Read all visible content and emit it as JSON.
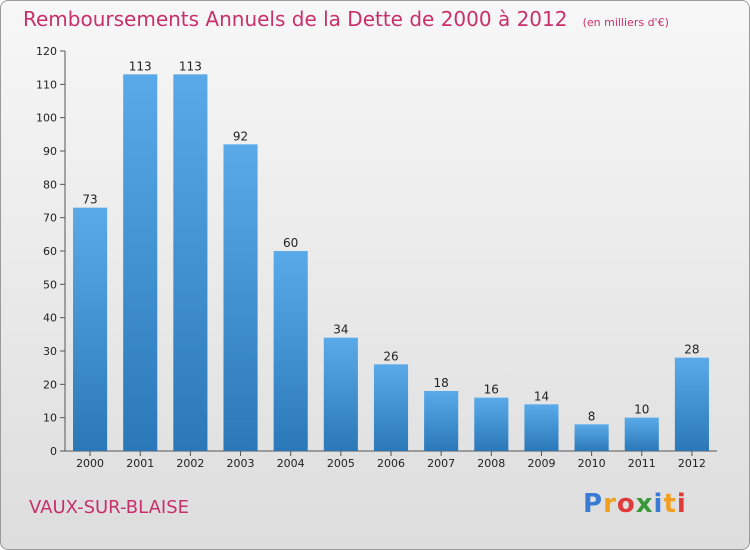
{
  "chart_title": "Remboursements Annuels de la Dette de 2000 à 2012",
  "chart_unit": "(en milliers d'€)",
  "town": "VAUX-SUR-BLAISE",
  "logo": {
    "letters": [
      "P",
      "r",
      "o",
      "x",
      "i",
      "t",
      "i"
    ],
    "colors": [
      "#3a7bd5",
      "#f0a020",
      "#e03a3a",
      "#3a9a3a",
      "#3a7bd5",
      "#f0a020",
      "#e03a3a"
    ]
  },
  "colors": {
    "bar_top": "#5aaaea",
    "bar_bottom": "#2a78b8",
    "title": "#c8306a"
  },
  "chart_data": {
    "type": "bar",
    "categories": [
      "2000",
      "2001",
      "2002",
      "2003",
      "2004",
      "2005",
      "2006",
      "2007",
      "2008",
      "2009",
      "2010",
      "2011",
      "2012"
    ],
    "values": [
      73,
      113,
      113,
      92,
      60,
      34,
      26,
      18,
      16,
      14,
      8,
      10,
      28
    ],
    "ylim": [
      0,
      120
    ],
    "yticks": [
      0,
      10,
      20,
      30,
      40,
      50,
      60,
      70,
      80,
      90,
      100,
      110,
      120
    ],
    "grid": false,
    "legend": "none"
  }
}
